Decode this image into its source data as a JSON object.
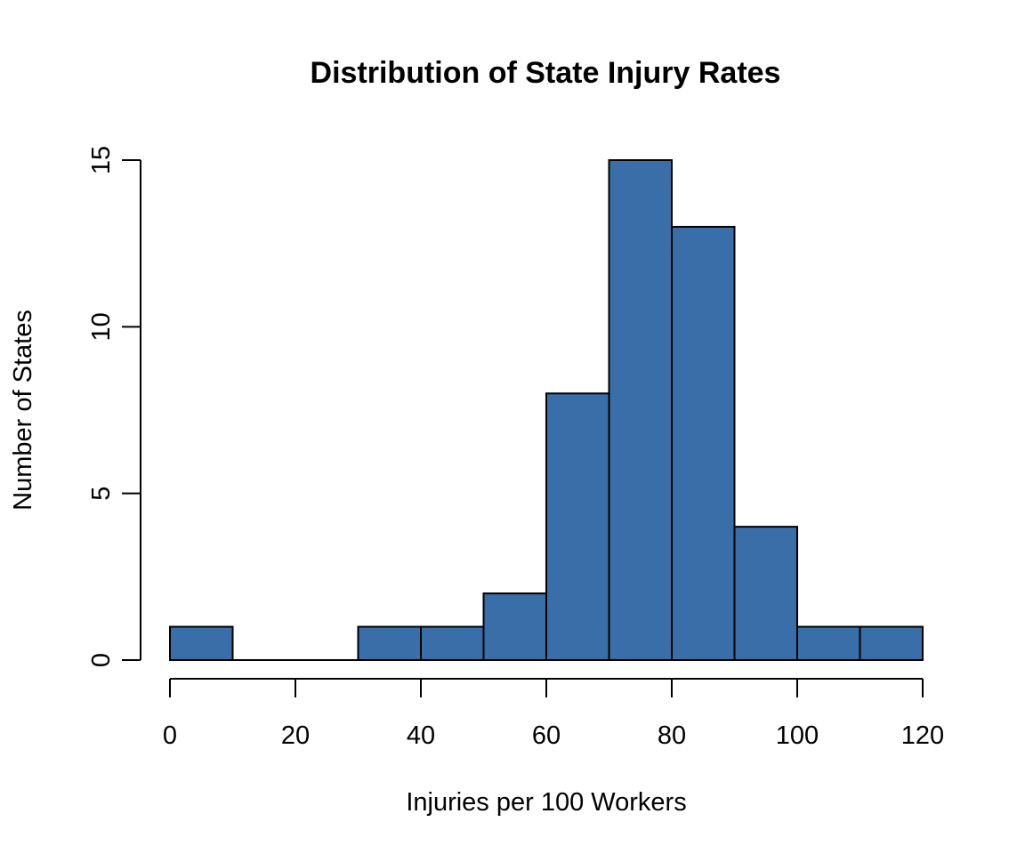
{
  "chart_data": {
    "type": "bar",
    "title": "Distribution of State Injury Rates",
    "xlabel": "Injuries per 100 Workers",
    "ylabel": "Number of States",
    "bins": [
      {
        "from": 0,
        "to": 10,
        "count": 1
      },
      {
        "from": 10,
        "to": 20,
        "count": 0
      },
      {
        "from": 20,
        "to": 30,
        "count": 0
      },
      {
        "from": 30,
        "to": 40,
        "count": 1
      },
      {
        "from": 40,
        "to": 50,
        "count": 1
      },
      {
        "from": 50,
        "to": 60,
        "count": 2
      },
      {
        "from": 60,
        "to": 70,
        "count": 8
      },
      {
        "from": 70,
        "to": 80,
        "count": 15
      },
      {
        "from": 80,
        "to": 90,
        "count": 13
      },
      {
        "from": 90,
        "to": 100,
        "count": 4
      },
      {
        "from": 100,
        "to": 110,
        "count": 1
      },
      {
        "from": 110,
        "to": 120,
        "count": 1
      }
    ],
    "xlim": [
      0,
      120
    ],
    "ylim": [
      0,
      15
    ],
    "x_ticks": [
      0,
      20,
      40,
      60,
      80,
      100,
      120
    ],
    "y_ticks": [
      0,
      5,
      10,
      15
    ],
    "bar_color": "#3A6EA8",
    "grid": false,
    "legend": "none"
  }
}
